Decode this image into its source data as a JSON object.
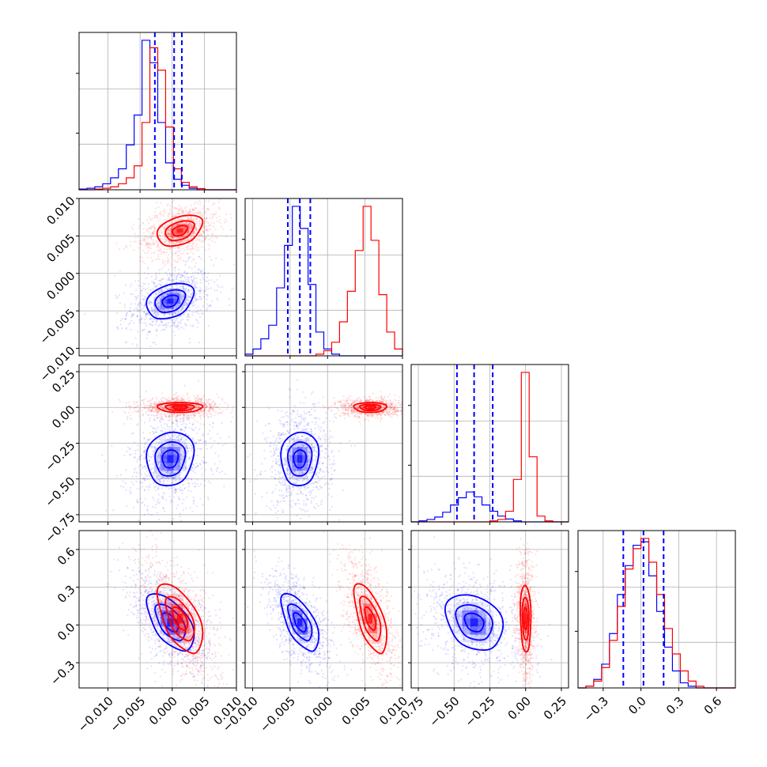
{
  "chart_data": {
    "type": "corner",
    "colors": {
      "series_a": "#0000ff",
      "series_b": "#ff0000",
      "grid": "#b0b0b0",
      "axes": "#000000"
    },
    "grid": true,
    "params": [
      {
        "range": [
          -0.0145,
          0.01
        ],
        "ticks": [
          -0.01,
          -0.005,
          0.0,
          0.005,
          0.01
        ],
        "tick_labels": [
          "−0.010",
          "−0.005",
          "0.000",
          "0.005",
          "0.010"
        ],
        "quantiles_a": [
          -0.0027,
          0.0003,
          0.0015
        ],
        "hist_a": [
          0.005,
          0.01,
          0.02,
          0.04,
          0.08,
          0.14,
          0.3,
          0.5,
          1.0,
          0.85,
          0.45,
          0.18,
          0.07,
          0.03,
          0.01,
          0.0,
          0.0,
          0.0,
          0.0,
          0.0
        ],
        "hist_b": [
          0.0,
          0.0,
          0.005,
          0.01,
          0.02,
          0.04,
          0.08,
          0.16,
          0.45,
          0.95,
          0.8,
          0.42,
          0.14,
          0.05,
          0.02,
          0.008,
          0.0,
          0.0,
          0.0,
          0.0
        ],
        "mean_a": -0.0003,
        "sd_a": 0.0022,
        "mean_b": 0.0012,
        "sd_b": 0.0021
      },
      {
        "range": [
          -0.011,
          0.01
        ],
        "ticks": [
          -0.01,
          -0.005,
          0.0,
          0.005,
          0.01
        ],
        "tick_labels": [
          "−0.010",
          "−0.005",
          "0.000",
          "0.005",
          "0.010"
        ],
        "quantiles_a": [
          -0.0053,
          -0.0037,
          -0.0023
        ],
        "hist_a": [
          0.01,
          0.04,
          0.1,
          0.18,
          0.4,
          0.65,
          0.88,
          0.75,
          0.42,
          0.14,
          0.04,
          0.01,
          0.0,
          0.0,
          0.0,
          0.0,
          0.0,
          0.0,
          0.0,
          0.0
        ],
        "hist_b": [
          0.0,
          0.0,
          0.0,
          0.0,
          0.0,
          0.0,
          0.0,
          0.0,
          0.0,
          0.01,
          0.03,
          0.08,
          0.2,
          0.38,
          0.62,
          0.88,
          0.68,
          0.36,
          0.14,
          0.04
        ],
        "mean_a": -0.0037,
        "sd_a": 0.0015,
        "mean_b": 0.0057,
        "sd_b": 0.0013
      },
      {
        "range": [
          -0.8,
          0.3
        ],
        "ticks": [
          -0.75,
          -0.5,
          -0.25,
          0.0,
          0.25
        ],
        "tick_labels": [
          "−0.75",
          "−0.50",
          "−0.25",
          "0.00",
          "0.25"
        ],
        "quantiles_a": [
          -0.48,
          -0.36,
          -0.23
        ],
        "hist_a": [
          0.0,
          0.02,
          0.05,
          0.1,
          0.2,
          0.35,
          0.5,
          0.62,
          0.52,
          0.35,
          0.22,
          0.12,
          0.06,
          0.02,
          0.0,
          0.0,
          0.0,
          0.0,
          0.0,
          0.0
        ],
        "hist_b": [
          0.0,
          0.0,
          0.0,
          0.0,
          0.0,
          0.0,
          0.0,
          0.0,
          0.0,
          0.0,
          0.02,
          0.05,
          0.22,
          0.88,
          3.1,
          1.35,
          0.12,
          0.02,
          0.0,
          0.0
        ],
        "mean_a": -0.36,
        "sd_a": 0.12,
        "mean_b": 0.0,
        "sd_b": 0.022
      },
      {
        "range": [
          -0.5,
          0.75
        ],
        "ticks": [
          -0.3,
          0.0,
          0.3,
          0.6
        ],
        "tick_labels": [
          "−0.3",
          "0.0",
          "0.3",
          "0.6"
        ],
        "quantiles_a": [
          -0.14,
          0.02,
          0.18
        ],
        "hist_a": [
          0.0,
          0.01,
          0.05,
          0.14,
          0.32,
          0.55,
          0.72,
          0.84,
          0.86,
          0.66,
          0.45,
          0.24,
          0.1,
          0.03,
          0.01,
          0.0,
          0.0,
          0.0,
          0.0,
          0.0
        ],
        "hist_b": [
          0.0,
          0.01,
          0.04,
          0.12,
          0.28,
          0.48,
          0.7,
          0.82,
          0.88,
          0.74,
          0.55,
          0.35,
          0.2,
          0.1,
          0.04,
          0.01,
          0.0,
          0.0,
          0.0,
          0.0
        ],
        "mean_a": 0.02,
        "sd_a": 0.14,
        "mean_b": 0.05,
        "sd_b": 0.17
      }
    ],
    "pairs": [
      {
        "row": 1,
        "col": 0,
        "corr_a": 0.3,
        "corr_b": 0.35
      },
      {
        "row": 2,
        "col": 0,
        "corr_a": 0.1,
        "corr_b": 0.0
      },
      {
        "row": 2,
        "col": 1,
        "corr_a": 0.05,
        "corr_b": 0.0
      },
      {
        "row": 3,
        "col": 0,
        "corr_a": -0.55,
        "corr_b": -0.55
      },
      {
        "row": 3,
        "col": 1,
        "corr_a": -0.6,
        "corr_b": -0.6
      },
      {
        "row": 3,
        "col": 2,
        "corr_a": -0.25,
        "corr_b": -0.1
      }
    ]
  }
}
